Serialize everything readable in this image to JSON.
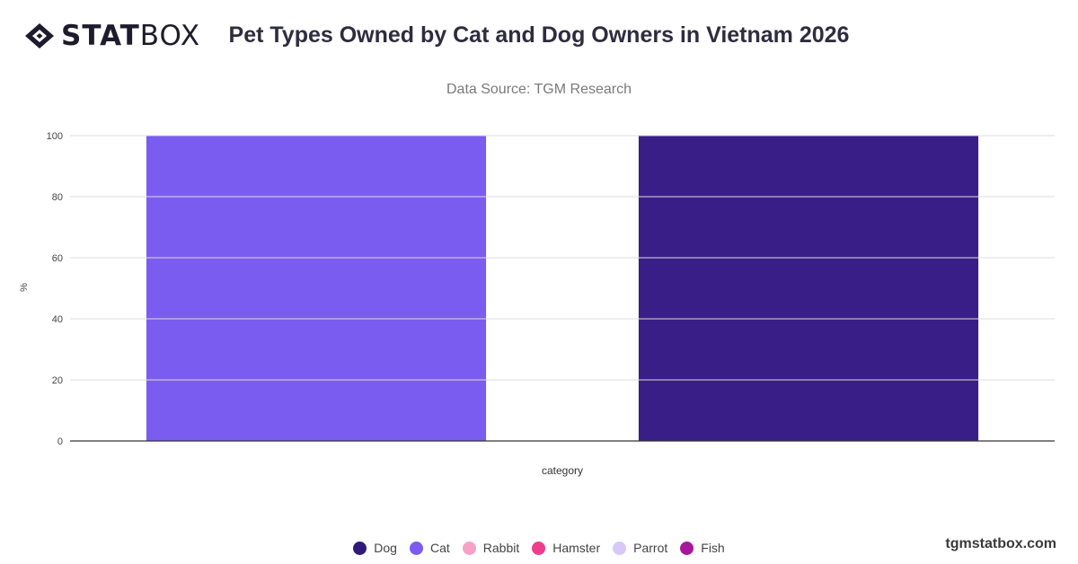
{
  "brand": {
    "logo_bold": "STAT",
    "logo_light": "BOX",
    "footer": "tgmstatbox.com"
  },
  "chart_data": {
    "type": "bar",
    "title": "Pet Types Owned by Cat and Dog Owners in Vietnam 2026",
    "subtitle": "Data Source: TGM Research",
    "xlabel": "category",
    "ylabel": "%",
    "ylim": [
      0,
      100
    ],
    "yticks": [
      0,
      20,
      40,
      60,
      80,
      100
    ],
    "grid": true,
    "legend_position": "bottom",
    "series": [
      {
        "name": "Cat",
        "value": 100,
        "color": "#7b5cf0"
      },
      {
        "name": "Dog",
        "value": 100,
        "color": "#381e86"
      }
    ],
    "legend": [
      {
        "name": "Dog",
        "color": "#2f1a7a"
      },
      {
        "name": "Cat",
        "color": "#7b5cf0"
      },
      {
        "name": "Rabbit",
        "color": "#f7a1c9"
      },
      {
        "name": "Hamster",
        "color": "#f03c8c"
      },
      {
        "name": "Parrot",
        "color": "#d6c8f7"
      },
      {
        "name": "Fish",
        "color": "#a8179a"
      }
    ]
  }
}
